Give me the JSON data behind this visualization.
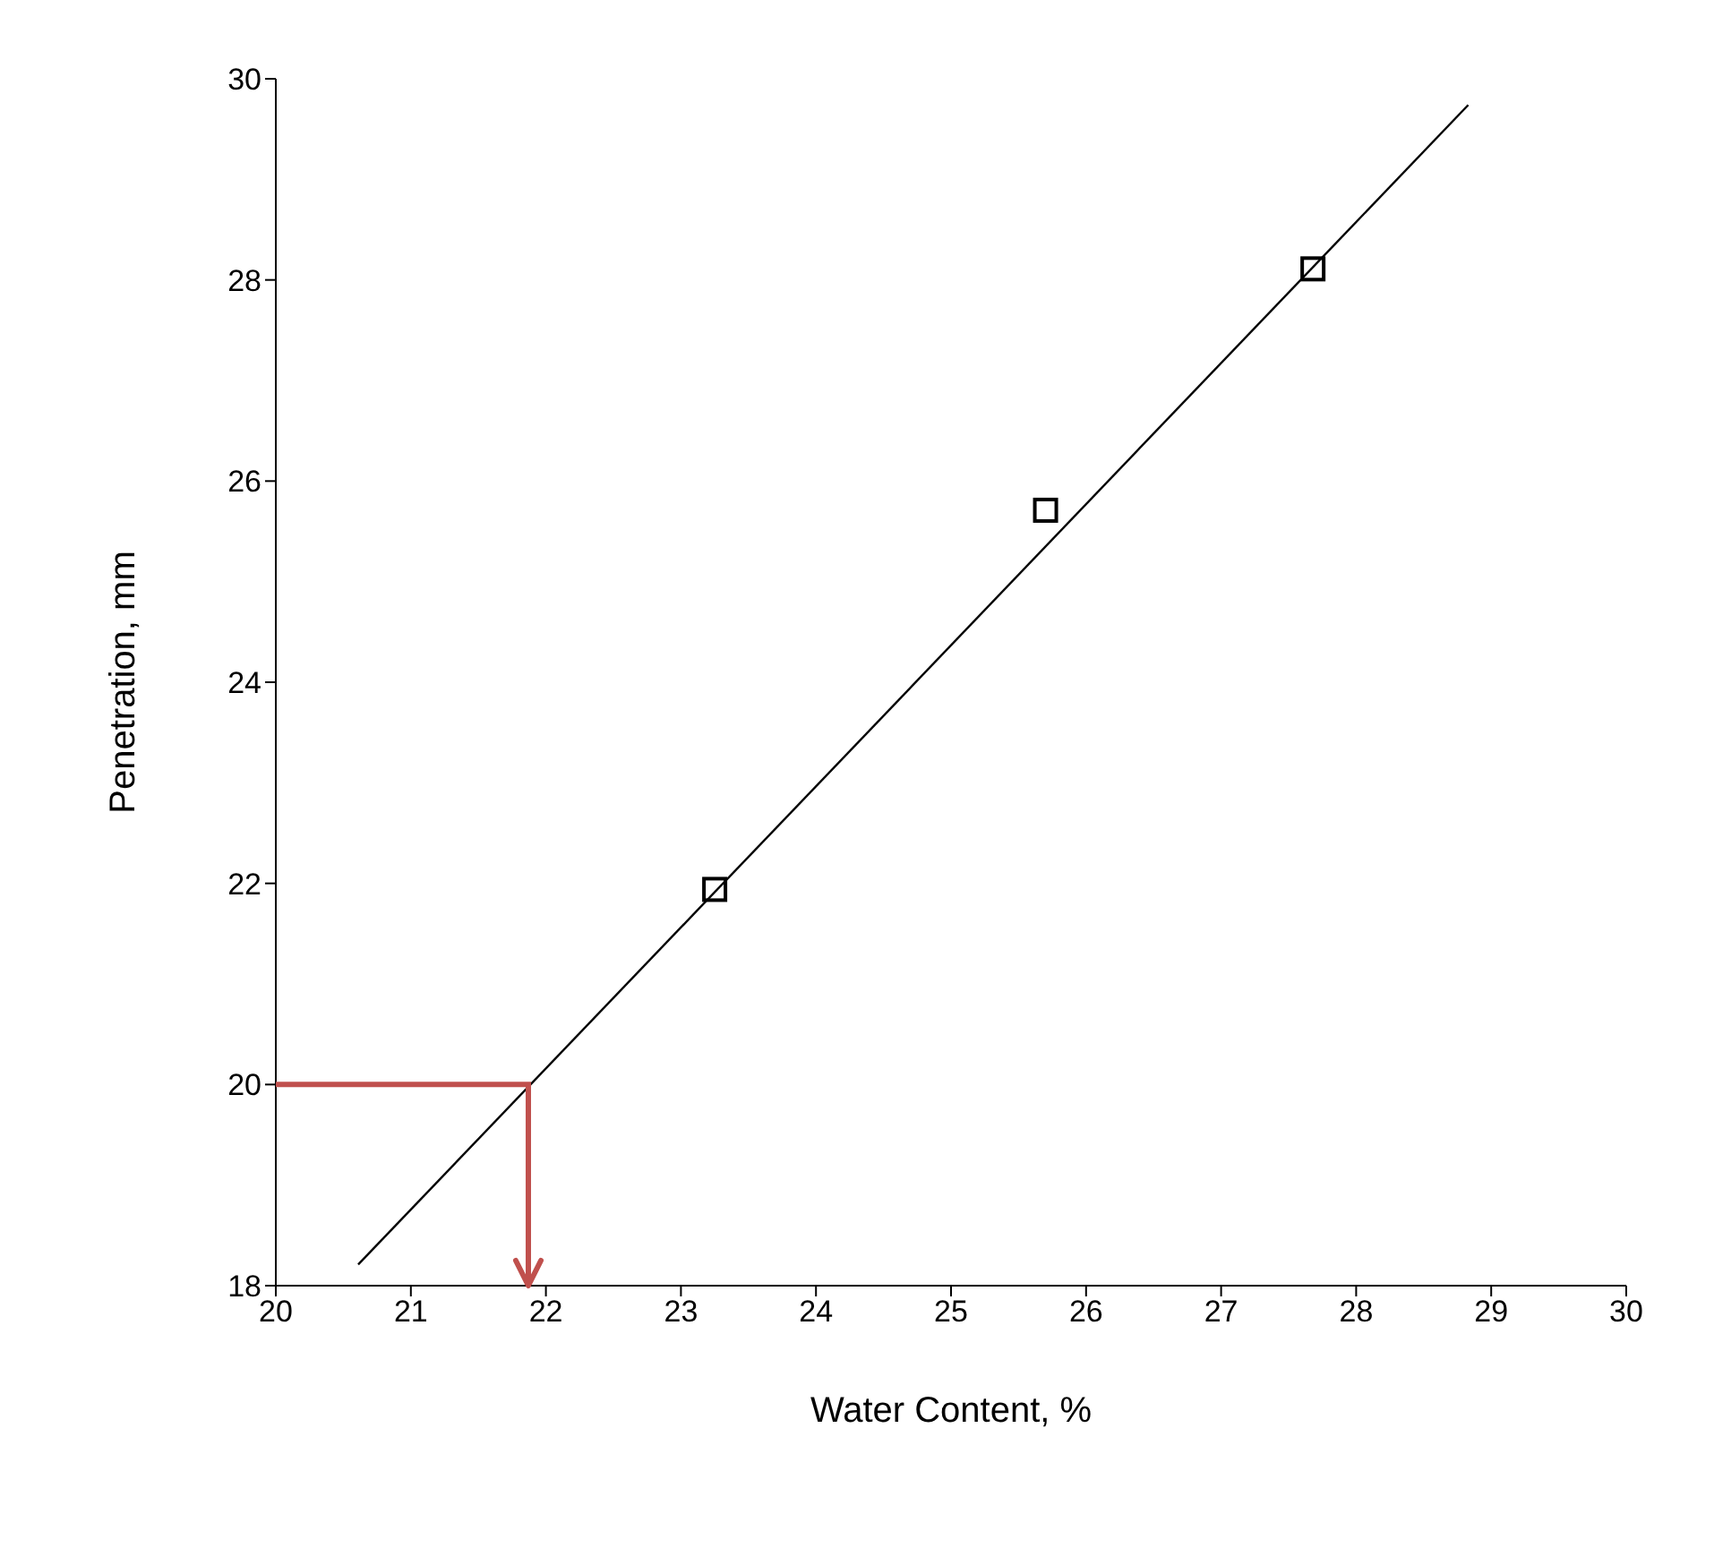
{
  "chart_data": {
    "type": "scatter",
    "xlabel": "Water Content, %",
    "ylabel": "Penetration, mm",
    "xlim": [
      20,
      30
    ],
    "xticks": [
      20,
      21,
      22,
      23,
      24,
      25,
      26,
      27,
      28,
      29,
      30
    ],
    "ylim": [
      18,
      30
    ],
    "yticks": [
      18,
      20,
      22,
      24,
      26,
      28,
      30
    ],
    "marker": "square",
    "series": [
      {
        "color": "#000000",
        "x": [
          23.25,
          25.7,
          27.68
        ],
        "values": [
          21.94,
          25.71,
          28.11
        ]
      },
      {
        "type": "line",
        "color": "#000000",
        "marker": "none",
        "x": [
          20.61,
          28.83
        ],
        "values": [
          18.21,
          29.74
        ]
      }
    ],
    "ref_lines": [
      {
        "axis": "y",
        "value": 20,
        "color": "#c0504d"
      },
      {
        "axis": "x",
        "value": 21.87,
        "color": "#c0504d"
      }
    ]
  }
}
